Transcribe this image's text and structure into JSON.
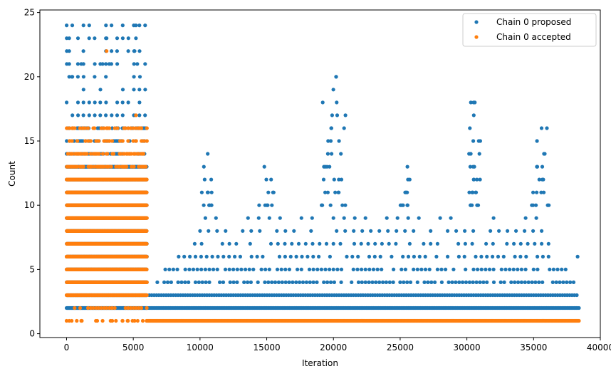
{
  "chart_data": {
    "type": "scatter",
    "title": "",
    "xlabel": "Iteration",
    "ylabel": "Count",
    "xlim": [
      -2000,
      40000
    ],
    "ylim": [
      -0.3,
      25.2
    ],
    "xticks": [
      0,
      5000,
      10000,
      15000,
      20000,
      25000,
      30000,
      35000,
      40000
    ],
    "yticks": [
      0,
      5,
      10,
      15,
      20,
      25
    ],
    "legend": "top-right",
    "grid": false,
    "series": [
      {
        "name": "Chain 0 proposed",
        "color": "#1f77b4",
        "bands": [
          {
            "y": 2,
            "from": 6000,
            "to": 38400,
            "step": 90
          },
          {
            "y": 3,
            "from": 6200,
            "to": 38400,
            "step": 180
          },
          {
            "y": 4,
            "from": 6800,
            "to": 38000,
            "step": 260
          },
          {
            "y": 5,
            "from": 7400,
            "to": 37600,
            "step": 300
          },
          {
            "y": 6,
            "from": 8400,
            "to": 36800,
            "step": 420
          },
          {
            "y": 7,
            "from": 9600,
            "to": 36400,
            "step": 520
          },
          {
            "y": 8,
            "from": 10000,
            "to": 36000,
            "step": 640
          },
          {
            "y": 9,
            "from": 10400,
            "to": 35800,
            "step": 800
          }
        ],
        "clusters": [
          {
            "center": 10500,
            "width": 1400,
            "max": 14
          },
          {
            "center": 15000,
            "width": 1800,
            "max": 13
          },
          {
            "center": 20000,
            "width": 2200,
            "max": 20
          },
          {
            "center": 25500,
            "width": 1200,
            "max": 13
          },
          {
            "center": 30500,
            "width": 1800,
            "max": 18
          },
          {
            "center": 35500,
            "width": 1600,
            "max": 16
          }
        ],
        "early_region": {
          "from": 0,
          "to": 6000,
          "min": 1,
          "max": 24
        },
        "points": [
          [
            200,
            23
          ],
          [
            3000,
            23
          ],
          [
            5200,
            24
          ],
          [
            5200,
            23
          ],
          [
            200,
            22
          ],
          [
            5100,
            22
          ],
          [
            200,
            21
          ],
          [
            1100,
            21
          ],
          [
            2700,
            21
          ],
          [
            3200,
            21
          ],
          [
            5300,
            21
          ],
          [
            200,
            20
          ],
          [
            400,
            20
          ],
          [
            5500,
            20
          ],
          [
            19200,
            18
          ],
          [
            20200,
            20
          ],
          [
            30300,
            18
          ],
          [
            30500,
            18
          ],
          [
            20900,
            17
          ],
          [
            20800,
            16
          ],
          [
            36000,
            16
          ],
          [
            31000,
            15
          ],
          [
            38300,
            6
          ]
        ]
      },
      {
        "name": "Chain 0 accepted",
        "color": "#ff7f0e",
        "bands": [
          {
            "y": 1,
            "from": 6000,
            "to": 38400,
            "step": 60
          }
        ],
        "early_region": {
          "from": 0,
          "to": 6000,
          "min": 1,
          "max": 16
        },
        "points": [
          [
            3000,
            22
          ],
          [
            5200,
            17
          ],
          [
            200,
            16
          ],
          [
            500,
            16
          ],
          [
            1200,
            16
          ],
          [
            2100,
            16
          ],
          [
            3100,
            16
          ],
          [
            4300,
            16
          ],
          [
            5500,
            16
          ],
          [
            200,
            1
          ],
          [
            1100,
            1
          ],
          [
            2200,
            1
          ],
          [
            2700,
            1
          ],
          [
            3300,
            1
          ],
          [
            3700,
            1
          ],
          [
            4200,
            1
          ],
          [
            4600,
            1
          ],
          [
            5100,
            1
          ]
        ]
      }
    ]
  }
}
